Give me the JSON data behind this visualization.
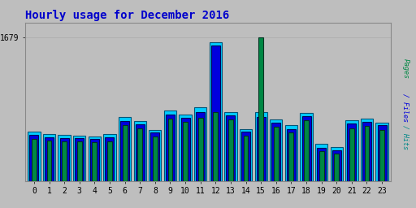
{
  "title": "Hourly usage for December 2016",
  "title_color": "#0000cc",
  "title_fontsize": 10,
  "background_color": "#bebebe",
  "hours": [
    0,
    1,
    2,
    3,
    4,
    5,
    6,
    7,
    8,
    9,
    10,
    11,
    12,
    13,
    14,
    15,
    16,
    17,
    18,
    19,
    20,
    21,
    22,
    23
  ],
  "hits": [
    580,
    550,
    540,
    530,
    520,
    550,
    750,
    700,
    600,
    820,
    780,
    860,
    1620,
    810,
    610,
    810,
    720,
    650,
    800,
    430,
    400,
    710,
    730,
    680
  ],
  "files": [
    540,
    510,
    500,
    500,
    490,
    510,
    700,
    660,
    570,
    780,
    740,
    810,
    1590,
    770,
    580,
    750,
    680,
    610,
    760,
    390,
    360,
    670,
    690,
    650
  ],
  "pages": [
    490,
    470,
    460,
    460,
    450,
    460,
    650,
    620,
    520,
    730,
    690,
    740,
    810,
    720,
    530,
    1679,
    630,
    570,
    710,
    350,
    320,
    620,
    640,
    600
  ],
  "ylim_max": 1850,
  "hits_color": "#00ccff",
  "files_color": "#0000dd",
  "pages_color": "#008844",
  "bar_width": 0.82,
  "font_family": "monospace"
}
